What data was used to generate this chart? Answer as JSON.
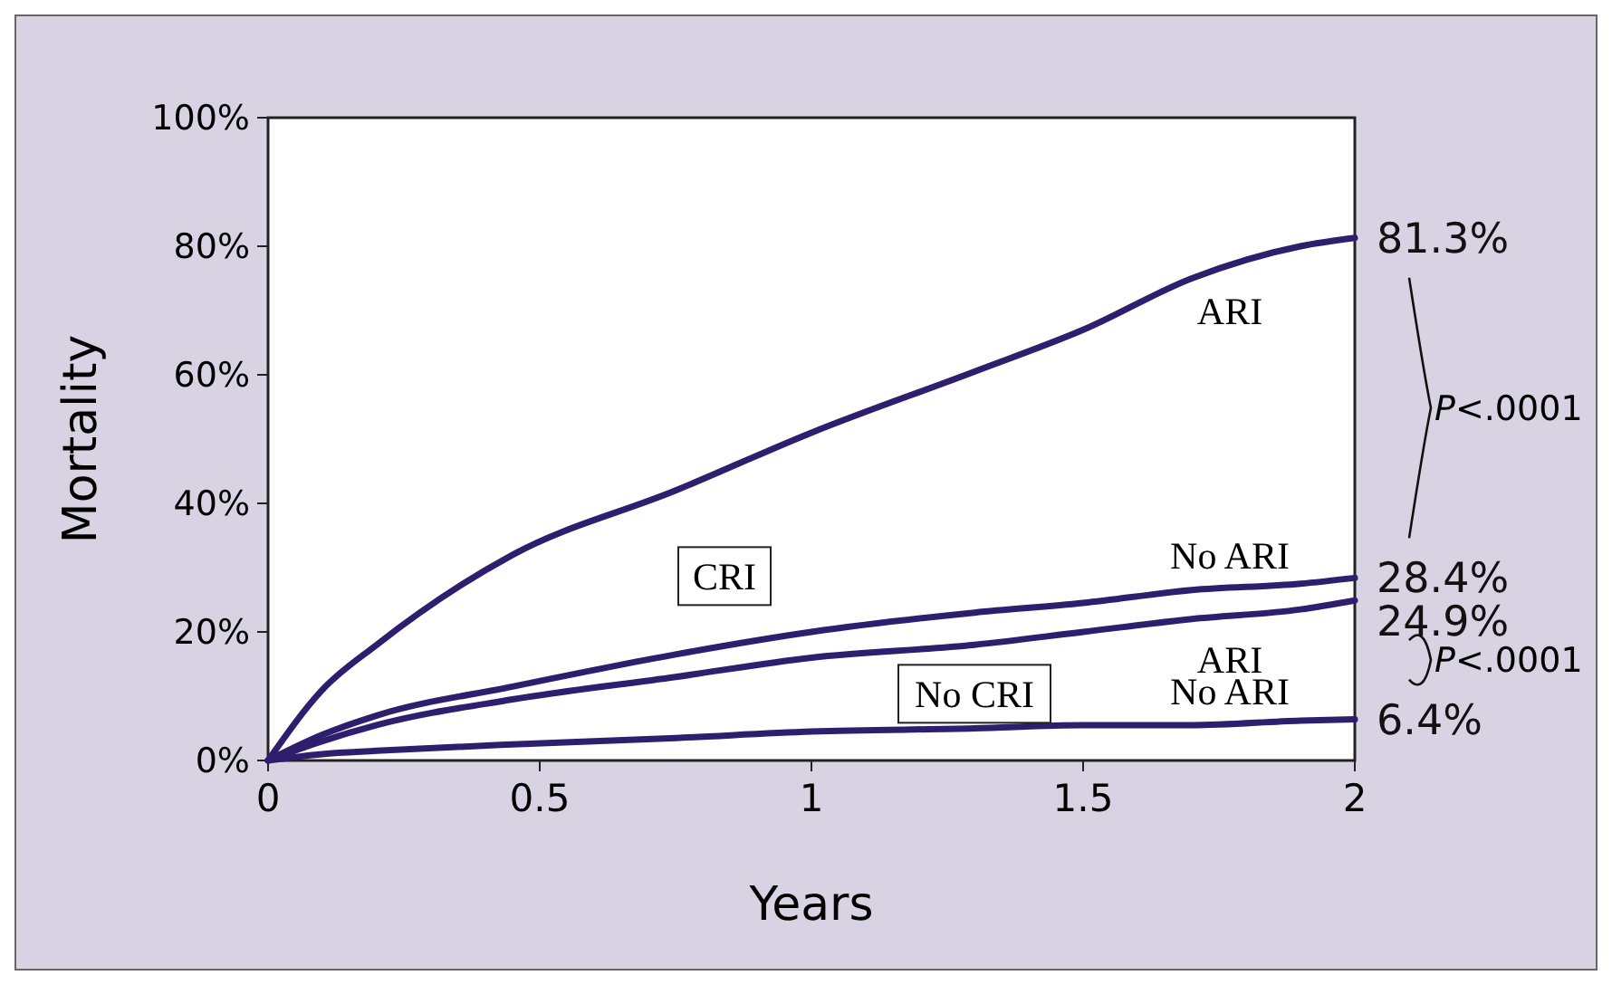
{
  "chart_data": {
    "type": "line",
    "xlabel": "Years",
    "ylabel": "Mortality",
    "x": [
      0,
      0.1,
      0.2,
      0.45,
      0.75,
      1,
      1.3,
      1.5,
      1.7,
      1.9,
      2
    ],
    "series": [
      {
        "name": "ARI",
        "color": "#2e1f6e",
        "values": [
          0,
          11,
          18,
          32,
          42,
          51,
          60.5,
          67,
          75,
          80,
          81.3
        ],
        "value_labels": [
          null,
          null,
          null,
          null,
          null,
          null,
          null,
          null,
          null,
          null,
          "81.3%"
        ]
      },
      {
        "name": "No ARI",
        "color": "#2e1f6e",
        "values": [
          0,
          4,
          7,
          11.5,
          16.5,
          20,
          23,
          24.5,
          26.5,
          27.5,
          28.4
        ],
        "value_labels": [
          null,
          null,
          null,
          null,
          null,
          null,
          null,
          null,
          null,
          null,
          "28.4%"
        ]
      },
      {
        "name": "ARI",
        "color": "#2e1f6e",
        "values": [
          0,
          3,
          5.5,
          9.5,
          13,
          16,
          18,
          20,
          22,
          23.5,
          24.9
        ],
        "value_labels": [
          null,
          null,
          null,
          null,
          null,
          null,
          null,
          null,
          null,
          null,
          "24.9%"
        ]
      },
      {
        "name": "No ARI",
        "color": "#2e1f6e",
        "values": [
          0,
          1,
          1.5,
          2.5,
          3.5,
          4.5,
          5,
          5.5,
          5.5,
          6.2,
          6.4
        ],
        "value_labels": [
          null,
          null,
          null,
          null,
          null,
          null,
          null,
          null,
          null,
          null,
          "6.4%"
        ]
      }
    ],
    "xlim": [
      0,
      2
    ],
    "xticks": [
      0,
      0.5,
      1,
      1.5,
      2
    ],
    "ylim": [
      0,
      100
    ],
    "yticks": [
      {
        "value": 0,
        "label": "0%"
      },
      {
        "value": 20,
        "label": "20%"
      },
      {
        "value": 40,
        "label": "40%"
      },
      {
        "value": 60,
        "label": "60%"
      },
      {
        "value": 80,
        "label": "80%"
      },
      {
        "value": 100,
        "label": "100%"
      }
    ],
    "grid": false,
    "marker": "none",
    "line_style": "solid",
    "annotations": [
      "CRI",
      "No CRI",
      "P<.0001",
      "P<.0001"
    ]
  }
}
